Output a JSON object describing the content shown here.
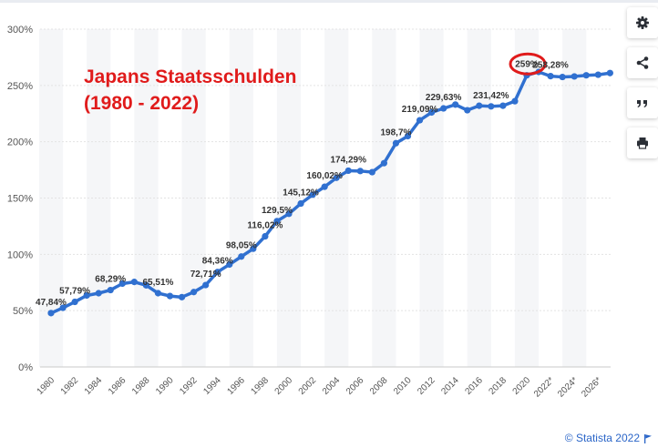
{
  "annotation": {
    "title_line1": "Japans Staatsschulden",
    "title_line2": "(1980 - 2022)",
    "highlight_color": "#e01b1b"
  },
  "toolbar": {
    "buttons": [
      "gear-icon",
      "share-icon",
      "quote-icon",
      "print-icon"
    ]
  },
  "credit": {
    "text": "© Statista 2022",
    "icon": "flag-icon",
    "color": "#2a65c8"
  },
  "chart_data": {
    "type": "line",
    "title": "",
    "xlabel": "",
    "ylabel": "",
    "ylim": [
      0,
      300
    ],
    "y_ticks": [
      0,
      50,
      100,
      150,
      200,
      250,
      300
    ],
    "y_tick_labels": [
      "0%",
      "50%",
      "100%",
      "150%",
      "200%",
      "250%",
      "300%"
    ],
    "x_tick_labels": [
      "1980",
      "1982",
      "1984",
      "1986",
      "1988",
      "1990",
      "1992",
      "1994",
      "1996",
      "1998",
      "2000",
      "2002",
      "2004",
      "2006",
      "2008",
      "2010",
      "2012",
      "2014",
      "2016",
      "2018",
      "2020",
      "2022*",
      "2024*",
      "2026*"
    ],
    "grid": "alternating vertical bands",
    "series_color": "#3070d0",
    "categories": [
      "1980",
      "1981",
      "1982",
      "1983",
      "1984",
      "1985",
      "1986",
      "1987",
      "1988",
      "1989",
      "1990",
      "1991",
      "1992",
      "1993",
      "1994",
      "1995",
      "1996",
      "1997",
      "1998",
      "1999",
      "2000",
      "2001",
      "2002",
      "2003",
      "2004",
      "2005",
      "2006",
      "2007",
      "2008",
      "2009",
      "2010",
      "2011",
      "2012",
      "2013",
      "2014",
      "2015",
      "2016",
      "2017",
      "2018",
      "2019",
      "2020",
      "2021",
      "2022*",
      "2023*",
      "2024*",
      "2025*",
      "2026*",
      "2027*"
    ],
    "values": [
      47.84,
      52.5,
      57.79,
      63.5,
      65.5,
      68.29,
      74.0,
      75.5,
      72.5,
      65.51,
      63.0,
      62.0,
      66.5,
      72.71,
      84.36,
      91.0,
      98.05,
      105.0,
      116.02,
      129.5,
      136.0,
      145.12,
      153.0,
      160.02,
      168.0,
      174.29,
      174.0,
      173.0,
      181.0,
      198.7,
      205.0,
      219.09,
      226.0,
      229.63,
      233.0,
      228.0,
      232.0,
      231.42,
      232.0,
      236.0,
      259.0,
      262.0,
      258.28,
      257.5,
      258.0,
      259.0,
      259.5,
      261.0
    ],
    "data_labels": [
      {
        "index": 0,
        "text": "47,84%"
      },
      {
        "index": 2,
        "text": "57,79%"
      },
      {
        "index": 5,
        "text": "68,29%"
      },
      {
        "index": 9,
        "text": "65,51%"
      },
      {
        "index": 13,
        "text": "72,71%"
      },
      {
        "index": 14,
        "text": "84,36%"
      },
      {
        "index": 16,
        "text": "98,05%"
      },
      {
        "index": 18,
        "text": "116,02%"
      },
      {
        "index": 19,
        "text": "129,5%"
      },
      {
        "index": 21,
        "text": "145,12%"
      },
      {
        "index": 23,
        "text": "160,02%"
      },
      {
        "index": 25,
        "text": "174,29%"
      },
      {
        "index": 29,
        "text": "198,7%"
      },
      {
        "index": 31,
        "text": "219,09%"
      },
      {
        "index": 33,
        "text": "229,63%"
      },
      {
        "index": 37,
        "text": "231,42%"
      },
      {
        "index": 40,
        "text": "259%"
      },
      {
        "index": 42,
        "text": "258,28%"
      }
    ],
    "highlighted_label": "259%"
  }
}
